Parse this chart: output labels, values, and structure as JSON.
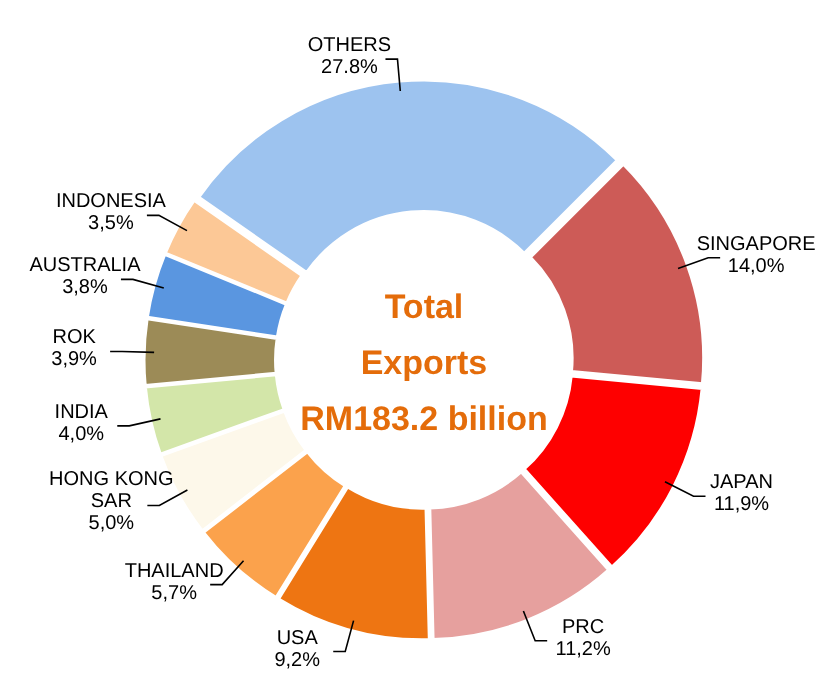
{
  "chart_data": {
    "type": "donut",
    "title": "Total\nExports\nRM183.2 billion",
    "categories": [
      "SINGAPORE",
      "JAPAN",
      "PRC",
      "USA",
      "THAILAND",
      "HONG KONG SAR",
      "INDIA",
      "ROK",
      "AUSTRALIA",
      "INDONESIA",
      "OTHERS"
    ],
    "values": [
      14.0,
      11.9,
      11.2,
      9.2,
      5.7,
      5.0,
      4.0,
      3.9,
      3.8,
      3.5,
      27.8
    ],
    "value_labels": [
      "14,0%",
      "11,9%",
      "11,2%",
      "9,2%",
      "5,7%",
      "5,0%",
      "4,0%",
      "3,9%",
      "3,8%",
      "3,5%",
      "27.8%"
    ],
    "colors": [
      "#cd5b57",
      "#fe0000",
      "#e6a09e",
      "#ee7512",
      "#fba24c",
      "#fdf8ea",
      "#d3e6a9",
      "#9c8b57",
      "#5a96e0",
      "#fcc896",
      "#9dc3ef"
    ],
    "legend": false
  }
}
